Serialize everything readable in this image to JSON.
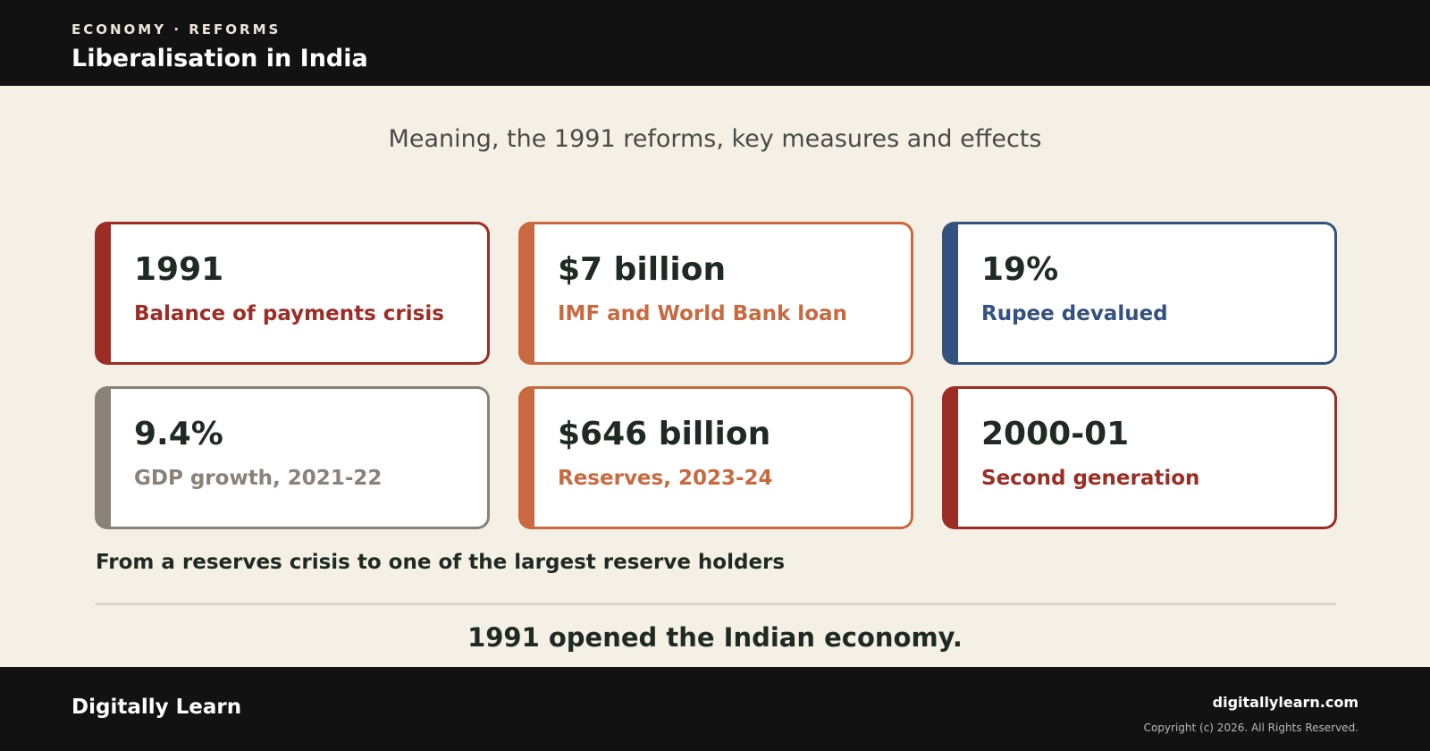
{
  "header": {
    "kicker": "ECONOMY · REFORMS",
    "title": "Liberalisation in India"
  },
  "subtitle": "Meaning, the 1991 reforms, key measures and effects",
  "cards": [
    {
      "value": "1991",
      "label": "Balance of payments crisis",
      "color": "#9b2d25"
    },
    {
      "value": "$7 billion",
      "label": "IMF and World Bank loan",
      "color": "#c8693f"
    },
    {
      "value": "19%",
      "label": "Rupee devalued",
      "color": "#34517f"
    },
    {
      "value": "9.4%",
      "label": "GDP growth, 2021-22",
      "color": "#8a8278"
    },
    {
      "value": "$646 billion",
      "label": "Reserves, 2023-24",
      "color": "#c8693f"
    },
    {
      "value": "2000-01",
      "label": "Second generation",
      "color": "#9b2d25"
    }
  ],
  "note": "From a reserves crisis to one of the largest reserve holders",
  "closing": "1991 opened the Indian economy.",
  "footer": {
    "brand": "Digitally Learn",
    "site": "digitallylearn.com",
    "copyright": "Copyright (c) 2026. All Rights Reserved."
  }
}
